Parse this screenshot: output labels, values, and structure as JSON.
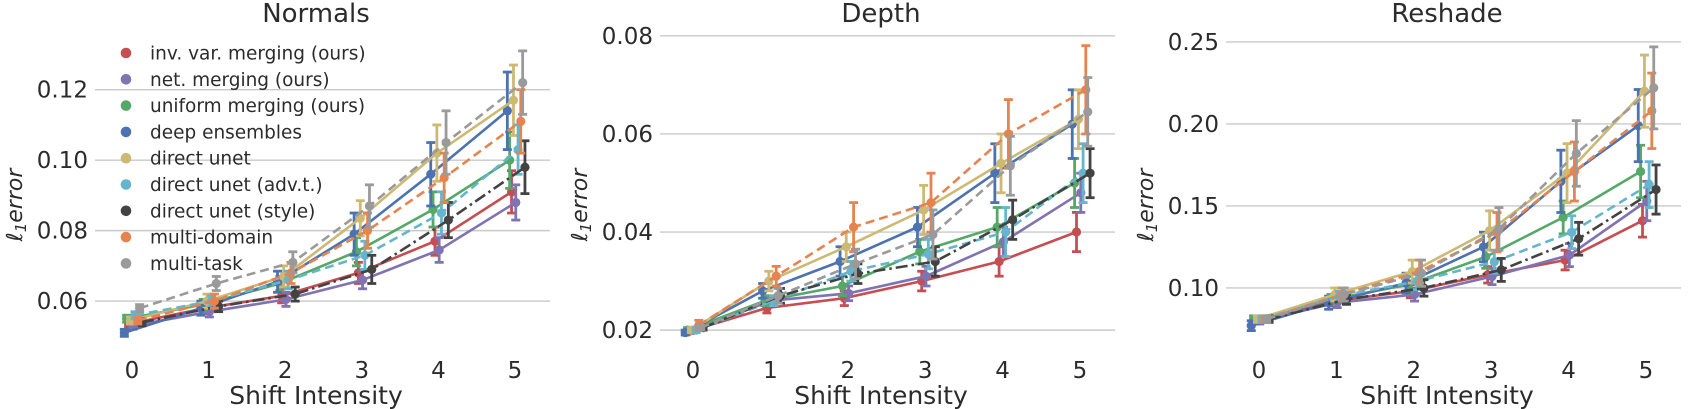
{
  "figure": {
    "background": "#ffffff",
    "text_color": "#2b2b2b",
    "grid_color": "#c9c9c9"
  },
  "chart_data": [
    {
      "type": "line",
      "title": "Normals",
      "xlabel": "Shift Intensity",
      "ylabel": "ℓ1error",
      "x": [
        0,
        1,
        2,
        3,
        4,
        5
      ],
      "xtick_labels": [
        "0",
        "1",
        "2",
        "3",
        "4",
        "5"
      ],
      "yticks": [
        0.06,
        0.08,
        0.1,
        0.12
      ],
      "ytick_labels": [
        "0.06",
        "0.08",
        "0.10",
        "0.12"
      ],
      "ylim": [
        0.0501,
        0.1375
      ],
      "grid": "horizontal",
      "legend": {
        "visible": true,
        "position": "upper left"
      },
      "series": [
        {
          "name": "inv. var. merging (ours)",
          "color": "#c44e52",
          "line_style": "solid",
          "values": [
            0.0535,
            0.058,
            0.0615,
            0.068,
            0.077,
            0.091
          ],
          "err": [
            0.001,
            0.0015,
            0.002,
            0.003,
            0.004,
            0.006
          ]
        },
        {
          "name": "net. merging (ours)",
          "color": "#8172b2",
          "line_style": "solid",
          "values": [
            0.053,
            0.057,
            0.0605,
            0.066,
            0.0745,
            0.088
          ],
          "err": [
            0.001,
            0.0015,
            0.002,
            0.0025,
            0.0035,
            0.005
          ]
        },
        {
          "name": "uniform merging (ours)",
          "color": "#55a868",
          "line_style": "solid",
          "values": [
            0.055,
            0.059,
            0.065,
            0.074,
            0.086,
            0.1
          ],
          "err": [
            0.001,
            0.0015,
            0.002,
            0.004,
            0.005,
            0.008
          ]
        },
        {
          "name": "deep ensembles",
          "color": "#4c72b0",
          "line_style": "solid",
          "values": [
            0.051,
            0.058,
            0.0655,
            0.079,
            0.096,
            0.114
          ],
          "err": [
            0.001,
            0.002,
            0.003,
            0.006,
            0.009,
            0.011
          ]
        },
        {
          "name": "direct unet",
          "color": "#ccb974",
          "line_style": "solid",
          "values": [
            0.0545,
            0.06,
            0.067,
            0.0835,
            0.102,
            0.117
          ],
          "err": [
            0.001,
            0.002,
            0.003,
            0.005,
            0.008,
            0.01
          ]
        },
        {
          "name": "direct unet (adv.t.)",
          "color": "#64b5cd",
          "line_style": "dashed",
          "values": [
            0.056,
            0.06,
            0.066,
            0.073,
            0.085,
            0.103
          ],
          "err": [
            0.001,
            0.0015,
            0.0025,
            0.004,
            0.006,
            0.007
          ]
        },
        {
          "name": "direct unet (style)",
          "color": "#434343",
          "line_style": "dashdot",
          "values": [
            0.054,
            0.0585,
            0.062,
            0.069,
            0.083,
            0.098
          ],
          "err": [
            0.001,
            0.0015,
            0.002,
            0.004,
            0.005,
            0.0075
          ]
        },
        {
          "name": "multi-domain",
          "color": "#e58451",
          "line_style": "dashed",
          "values": [
            0.0545,
            0.06,
            0.068,
            0.08,
            0.095,
            0.111
          ],
          "err": [
            0.001,
            0.002,
            0.003,
            0.005,
            0.007,
            0.009
          ]
        },
        {
          "name": "multi-task",
          "color": "#9a9a9a",
          "line_style": "dashed",
          "values": [
            0.058,
            0.065,
            0.071,
            0.087,
            0.105,
            0.122
          ],
          "err": [
            0.001,
            0.002,
            0.003,
            0.006,
            0.009,
            0.009
          ]
        }
      ]
    },
    {
      "type": "line",
      "title": "Depth",
      "xlabel": "Shift Intensity",
      "ylabel": "ℓ1error",
      "x": [
        0,
        1,
        2,
        3,
        4,
        5
      ],
      "xtick_labels": [
        "0",
        "1",
        "2",
        "3",
        "4",
        "5"
      ],
      "yticks": [
        0.02,
        0.04,
        0.06,
        0.08
      ],
      "ytick_labels": [
        "0.02",
        "0.04",
        "0.06",
        "0.08"
      ],
      "ylim": [
        0.0188,
        0.0816
      ],
      "grid": "horizontal",
      "legend": {
        "visible": false
      },
      "series": [
        {
          "name": "inv. var. merging (ours)",
          "color": "#c44e52",
          "line_style": "solid",
          "values": [
            0.0198,
            0.0245,
            0.0265,
            0.03,
            0.034,
            0.04
          ],
          "err": [
            0.0005,
            0.001,
            0.0015,
            0.002,
            0.003,
            0.004
          ]
        },
        {
          "name": "net. merging (ours)",
          "color": "#8172b2",
          "line_style": "solid",
          "values": [
            0.02,
            0.026,
            0.0275,
            0.031,
            0.038,
            0.048
          ],
          "err": [
            0.0005,
            0.001,
            0.0015,
            0.002,
            0.003,
            0.004
          ]
        },
        {
          "name": "uniform merging (ours)",
          "color": "#55a868",
          "line_style": "solid",
          "values": [
            0.02,
            0.026,
            0.029,
            0.036,
            0.041,
            0.05
          ],
          "err": [
            0.0005,
            0.001,
            0.002,
            0.0025,
            0.004,
            0.005
          ]
        },
        {
          "name": "deep ensembles",
          "color": "#4c72b0",
          "line_style": "solid",
          "values": [
            0.0195,
            0.028,
            0.034,
            0.041,
            0.052,
            0.062
          ],
          "err": [
            0.0005,
            0.0015,
            0.003,
            0.004,
            0.006,
            0.007
          ]
        },
        {
          "name": "direct unet",
          "color": "#ccb974",
          "line_style": "solid",
          "values": [
            0.02,
            0.03,
            0.037,
            0.0445,
            0.054,
            0.063
          ],
          "err": [
            0.0005,
            0.002,
            0.003,
            0.005,
            0.006,
            0.006
          ]
        },
        {
          "name": "direct unet (adv.t.)",
          "color": "#64b5cd",
          "line_style": "dashed",
          "values": [
            0.02,
            0.026,
            0.032,
            0.0355,
            0.04,
            0.052
          ],
          "err": [
            0.0005,
            0.001,
            0.002,
            0.003,
            0.005,
            0.006
          ]
        },
        {
          "name": "direct unet (style)",
          "color": "#434343",
          "line_style": "dashdot",
          "values": [
            0.0205,
            0.027,
            0.0315,
            0.034,
            0.0425,
            0.052
          ],
          "err": [
            0.0005,
            0.0015,
            0.002,
            0.003,
            0.004,
            0.005
          ]
        },
        {
          "name": "multi-domain",
          "color": "#e58451",
          "line_style": "dashed",
          "values": [
            0.021,
            0.031,
            0.041,
            0.046,
            0.06,
            0.069
          ],
          "err": [
            0.001,
            0.002,
            0.005,
            0.006,
            0.007,
            0.009
          ]
        },
        {
          "name": "multi-task",
          "color": "#9a9a9a",
          "line_style": "dashed",
          "values": [
            0.0205,
            0.027,
            0.0335,
            0.0395,
            0.0535,
            0.0645
          ],
          "err": [
            0.0005,
            0.0015,
            0.003,
            0.005,
            0.006,
            0.007
          ]
        }
      ]
    },
    {
      "type": "line",
      "title": "Reshade",
      "xlabel": "Shift Intensity",
      "ylabel": "ℓ1error",
      "x": [
        0,
        1,
        2,
        3,
        4,
        5
      ],
      "xtick_labels": [
        "0",
        "1",
        "2",
        "3",
        "4",
        "5"
      ],
      "yticks": [
        0.1,
        0.15,
        0.2,
        0.25
      ],
      "ytick_labels": [
        "0.10",
        "0.15",
        "0.20",
        "0.25"
      ],
      "ylim": [
        0.0707,
        0.2585
      ],
      "grid": "horizontal",
      "legend": {
        "visible": false
      },
      "series": [
        {
          "name": "inv. var. merging (ours)",
          "color": "#c44e52",
          "line_style": "solid",
          "values": [
            0.08,
            0.092,
            0.098,
            0.108,
            0.117,
            0.141
          ],
          "err": [
            0.002,
            0.003,
            0.004,
            0.005,
            0.006,
            0.01
          ]
        },
        {
          "name": "net. merging (ours)",
          "color": "#8172b2",
          "line_style": "solid",
          "values": [
            0.08,
            0.091,
            0.096,
            0.107,
            0.12,
            0.153
          ],
          "err": [
            0.002,
            0.003,
            0.004,
            0.005,
            0.007,
            0.012
          ]
        },
        {
          "name": "uniform merging (ours)",
          "color": "#55a868",
          "line_style": "solid",
          "values": [
            0.081,
            0.093,
            0.102,
            0.119,
            0.143,
            0.171
          ],
          "err": [
            0.002,
            0.003,
            0.005,
            0.007,
            0.01,
            0.016
          ]
        },
        {
          "name": "deep ensembles",
          "color": "#4c72b0",
          "line_style": "solid",
          "values": [
            0.077,
            0.091,
            0.103,
            0.125,
            0.165,
            0.199
          ],
          "err": [
            0.003,
            0.004,
            0.006,
            0.009,
            0.019,
            0.022
          ]
        },
        {
          "name": "direct unet",
          "color": "#ccb974",
          "line_style": "solid",
          "values": [
            0.081,
            0.096,
            0.11,
            0.135,
            0.17,
            0.22
          ],
          "err": [
            0.002,
            0.004,
            0.007,
            0.012,
            0.018,
            0.022
          ]
        },
        {
          "name": "direct unet (adv.t.)",
          "color": "#64b5cd",
          "line_style": "dashed",
          "values": [
            0.081,
            0.095,
            0.104,
            0.116,
            0.134,
            0.163
          ],
          "err": [
            0.002,
            0.003,
            0.005,
            0.007,
            0.01,
            0.014
          ]
        },
        {
          "name": "direct unet (style)",
          "color": "#434343",
          "line_style": "dashdot",
          "values": [
            0.081,
            0.093,
            0.1,
            0.111,
            0.13,
            0.16
          ],
          "err": [
            0.002,
            0.003,
            0.005,
            0.007,
            0.01,
            0.015
          ]
        },
        {
          "name": "multi-domain",
          "color": "#e58451",
          "line_style": "dashed",
          "values": [
            0.081,
            0.096,
            0.11,
            0.134,
            0.171,
            0.208
          ],
          "err": [
            0.002,
            0.004,
            0.007,
            0.012,
            0.018,
            0.023
          ]
        },
        {
          "name": "multi-task",
          "color": "#9a9a9a",
          "line_style": "dashed",
          "values": [
            0.081,
            0.096,
            0.109,
            0.136,
            0.182,
            0.222
          ],
          "err": [
            0.002,
            0.004,
            0.008,
            0.013,
            0.02,
            0.025
          ]
        }
      ]
    }
  ]
}
